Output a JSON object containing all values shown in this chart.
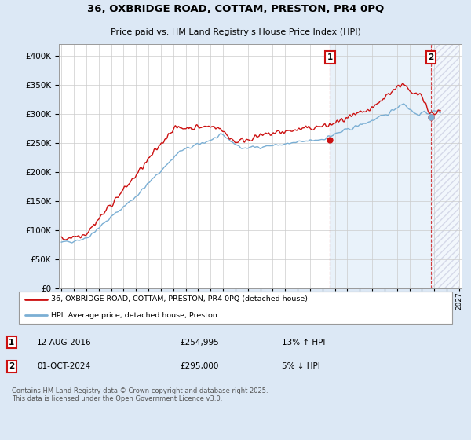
{
  "title_line1": "36, OXBRIDGE ROAD, COTTAM, PRESTON, PR4 0PQ",
  "title_line2": "Price paid vs. HM Land Registry's House Price Index (HPI)",
  "legend_line1": "36, OXBRIDGE ROAD, COTTAM, PRESTON, PR4 0PQ (detached house)",
  "legend_line2": "HPI: Average price, detached house, Preston",
  "annotation1_label": "1",
  "annotation1_date": "12-AUG-2016",
  "annotation1_price": "£254,995",
  "annotation1_hpi": "13% ↑ HPI",
  "annotation2_label": "2",
  "annotation2_date": "01-OCT-2024",
  "annotation2_price": "£295,000",
  "annotation2_hpi": "5% ↓ HPI",
  "footer": "Contains HM Land Registry data © Crown copyright and database right 2025.\nThis data is licensed under the Open Government Licence v3.0.",
  "hpi_color": "#7bafd4",
  "price_color": "#cc1111",
  "annotation_color": "#cc1111",
  "background_color": "#dce8f5",
  "plot_bg_color": "#ffffff",
  "grid_color": "#cccccc",
  "shade_color": "#ddeeff",
  "ylim_min": 0,
  "ylim_max": 420000,
  "yticks": [
    0,
    50000,
    100000,
    150000,
    200000,
    250000,
    300000,
    350000,
    400000
  ],
  "year_start": 1995,
  "year_end": 2027,
  "marker1_year": 2016.62,
  "marker1_value": 254995,
  "marker2_year": 2024.75,
  "marker2_value": 295000
}
